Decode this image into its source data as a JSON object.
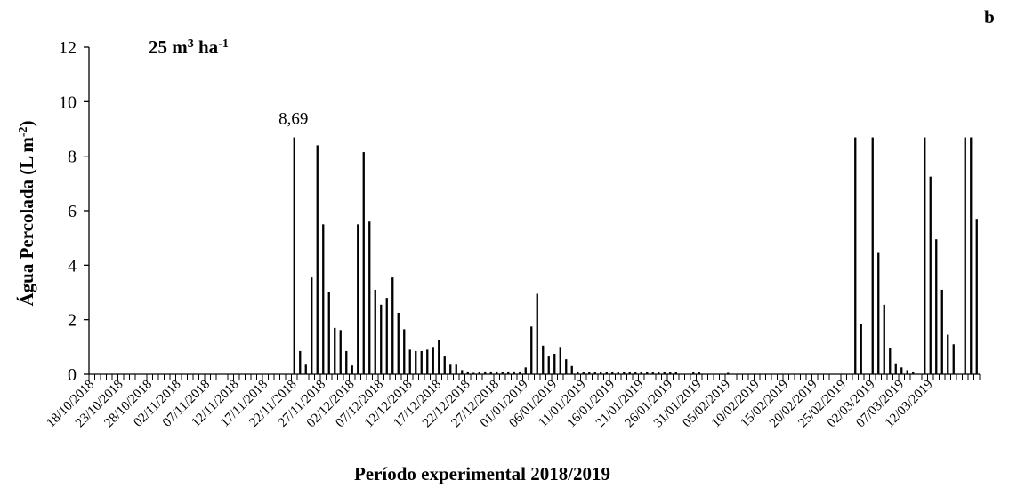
{
  "chart_data": {
    "type": "bar",
    "panel_label": "b",
    "subtitle": {
      "base": "25 m",
      "sup1": "3",
      "mid": " ha",
      "sup2": "-1"
    },
    "ylabel": {
      "base": "Água Percolada (L m",
      "sup": "-2",
      "end": ")"
    },
    "xlabel": "Período experimental 2018/2019",
    "ylim": [
      0,
      12
    ],
    "yticks": [
      0,
      2,
      4,
      6,
      8,
      10,
      12
    ],
    "grid": false,
    "legend": "none",
    "bar_color": "#000000",
    "annotation": {
      "text": "8,69",
      "day_index": 35
    },
    "start_date": "2018-10-18",
    "x_tick_labels": [
      "18/10/2018",
      "23/10/2018",
      "28/10/2018",
      "02/11/2018",
      "07/11/2018",
      "12/11/2018",
      "17/11/2018",
      "22/11/2018",
      "27/11/2018",
      "02/12/2018",
      "07/12/2018",
      "12/12/2018",
      "17/12/2018",
      "22/12/2018",
      "27/12/2018",
      "01/01/2019",
      "06/01/2019",
      "11/01/2019",
      "16/01/2019",
      "21/01/2019",
      "26/01/2019",
      "31/01/2019",
      "05/02/2019",
      "10/02/2019",
      "15/02/2019",
      "20/02/2019",
      "25/02/2019",
      "02/03/2019",
      "07/03/2019",
      "12/03/2019"
    ],
    "values": [
      0,
      0,
      0,
      0,
      0,
      0,
      0,
      0,
      0,
      0,
      0,
      0,
      0,
      0,
      0,
      0,
      0,
      0,
      0,
      0,
      0,
      0,
      0,
      0,
      0,
      0,
      0,
      0,
      0,
      0,
      0,
      0,
      0,
      0,
      0,
      8.69,
      0.85,
      0.35,
      3.55,
      8.4,
      5.5,
      3.0,
      1.7,
      1.62,
      0.85,
      0.32,
      5.5,
      8.15,
      5.6,
      3.1,
      2.55,
      2.8,
      3.55,
      2.25,
      1.65,
      0.9,
      0.85,
      0.85,
      0.9,
      1.0,
      1.25,
      0.65,
      0.35,
      0.35,
      0.15,
      0.1,
      0.05,
      0.1,
      0.1,
      0.1,
      0.1,
      0.1,
      0.1,
      0.1,
      0.1,
      0.25,
      1.75,
      2.95,
      1.05,
      0.65,
      0.75,
      1.0,
      0.55,
      0.3,
      0.1,
      0.08,
      0.08,
      0.08,
      0.08,
      0.08,
      0.08,
      0.08,
      0.08,
      0.08,
      0.08,
      0.08,
      0.08,
      0.08,
      0.08,
      0.08,
      0.08,
      0.08,
      0,
      0,
      0.08,
      0.08,
      0,
      0,
      0,
      0,
      0.05,
      0,
      0,
      0,
      0,
      0,
      0,
      0,
      0,
      0,
      0,
      0,
      0,
      0,
      0,
      0,
      0,
      0,
      0,
      0,
      0,
      0,
      8.69,
      1.85,
      0,
      8.69,
      4.45,
      2.55,
      0.95,
      0.4,
      0.25,
      0.15,
      0.1,
      0,
      8.69,
      7.25,
      4.95,
      3.1,
      1.45,
      1.1,
      0,
      8.69,
      8.69,
      5.7
    ]
  }
}
